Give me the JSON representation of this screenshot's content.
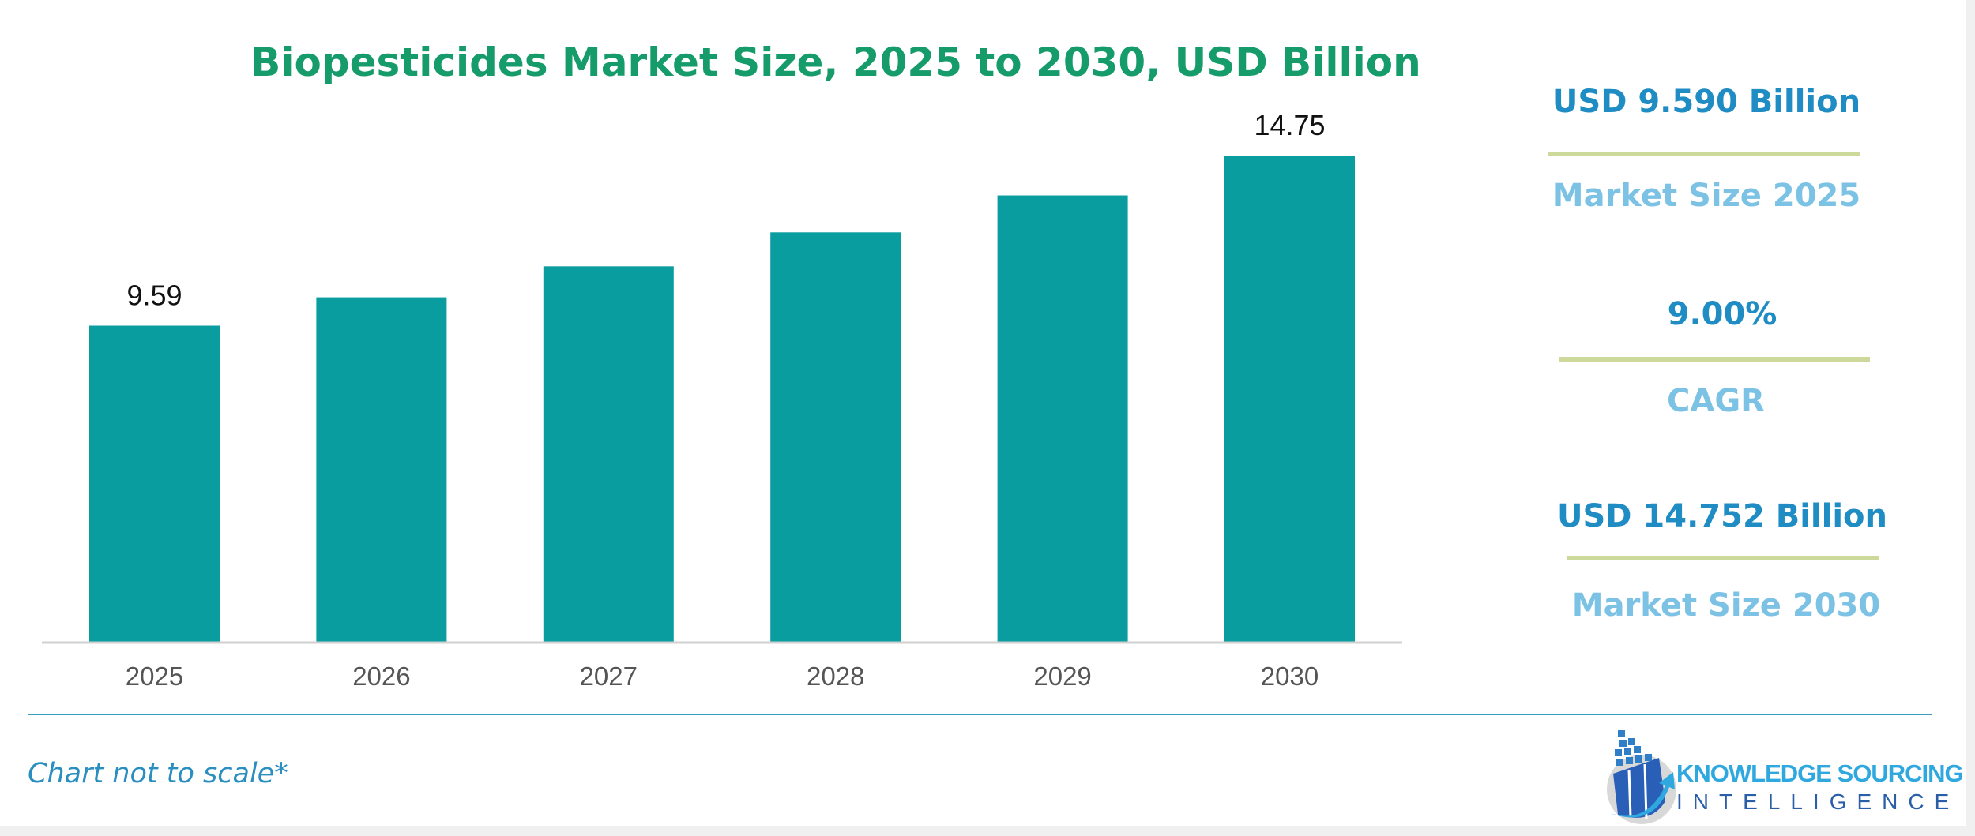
{
  "chart_data": {
    "type": "bar",
    "title": "Biopesticides Market Size, 2025 to 2030, USD Billion",
    "categories": [
      "2025",
      "2026",
      "2027",
      "2028",
      "2029",
      "2030"
    ],
    "values": [
      9.59,
      10.45,
      11.39,
      12.42,
      13.54,
      14.75
    ],
    "data_labels": [
      "9.59",
      "",
      "",
      "",
      "",
      "14.75"
    ],
    "xlabel": "",
    "ylabel": "",
    "ylim": [
      0,
      14.75
    ],
    "grid": false,
    "bar_color": "#0a9da0"
  },
  "stats": [
    {
      "value": "USD 9.590 Billion",
      "label": "Market Size 2025"
    },
    {
      "value": "9.00%",
      "label": "CAGR"
    },
    {
      "value": "USD 14.752 Billion",
      "label": "Market Size 2030"
    }
  ],
  "footer": {
    "note": "Chart not to scale*"
  },
  "logo": {
    "line1": "KNOWLEDGE SOURCING",
    "line2": "INTELLIGENCE"
  },
  "colors": {
    "title": "#169b6b",
    "stat_value": "#1f8cc4",
    "stat_label": "#7cc2e4",
    "separator": "#cdd99b"
  }
}
